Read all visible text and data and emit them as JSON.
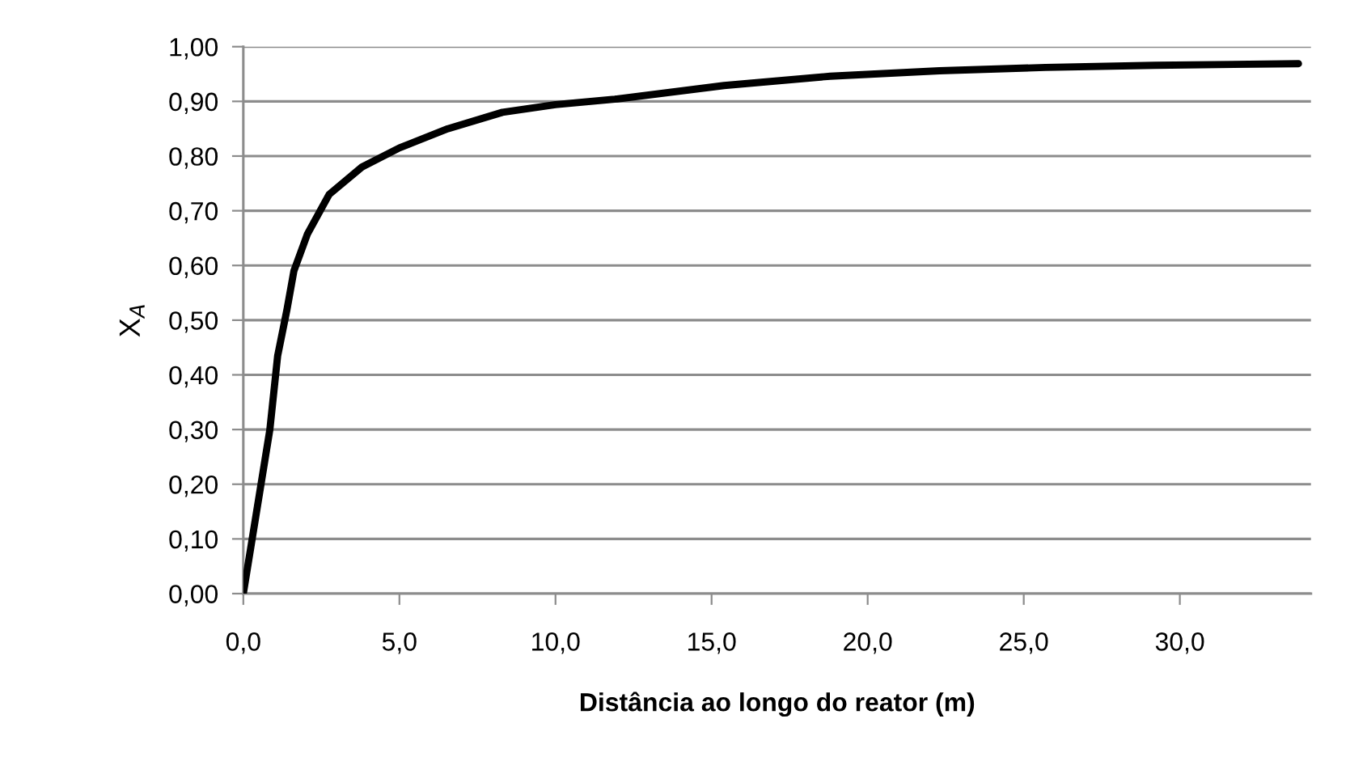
{
  "chart_data": {
    "type": "line",
    "xlabel": "Distância ao longo do reator (m)",
    "ylabel": "X$_{A}$",
    "x": [
      0,
      0.85,
      1.1,
      1.4,
      1.62,
      2.05,
      2.75,
      3.8,
      5.0,
      6.55,
      8.3,
      10.0,
      11.9,
      15.4,
      18.8,
      22.3,
      25.7,
      29.2,
      33.8
    ],
    "series": [
      {
        "color": "#000000",
        "values": [
          0,
          0.3,
          0.435,
          0.52,
          0.59,
          0.657,
          0.73,
          0.78,
          0.815,
          0.85,
          0.88,
          0.894,
          0.904,
          0.929,
          0.946,
          0.956,
          0.962,
          0.966,
          0.969
        ]
      }
    ],
    "xlim": [
      0,
      34.2
    ],
    "xticks": [
      {
        "value": 0,
        "label": "0,0"
      },
      {
        "value": 5,
        "label": "5,0"
      },
      {
        "value": 10,
        "label": "10,0"
      },
      {
        "value": 15,
        "label": "15,0"
      },
      {
        "value": 20,
        "label": "20,0"
      },
      {
        "value": 25,
        "label": "25,0"
      },
      {
        "value": 30,
        "label": "30,0"
      }
    ],
    "ylim": [
      0,
      1
    ],
    "yticks": [
      {
        "value": 0,
        "label": "0,00"
      },
      {
        "value": 0.1,
        "label": "0,10"
      },
      {
        "value": 0.2,
        "label": "0,20"
      },
      {
        "value": 0.3,
        "label": "0,30"
      },
      {
        "value": 0.4,
        "label": "0,40"
      },
      {
        "value": 0.5,
        "label": "0,50"
      },
      {
        "value": 0.6,
        "label": "0,60"
      },
      {
        "value": 0.7,
        "label": "0,70"
      },
      {
        "value": 0.8,
        "label": "0,80"
      },
      {
        "value": 0.9,
        "label": "0,90"
      },
      {
        "value": 1.0,
        "label": "1,00"
      }
    ],
    "grid": "y",
    "legend": false,
    "marker": "none",
    "line_style": "solid"
  }
}
